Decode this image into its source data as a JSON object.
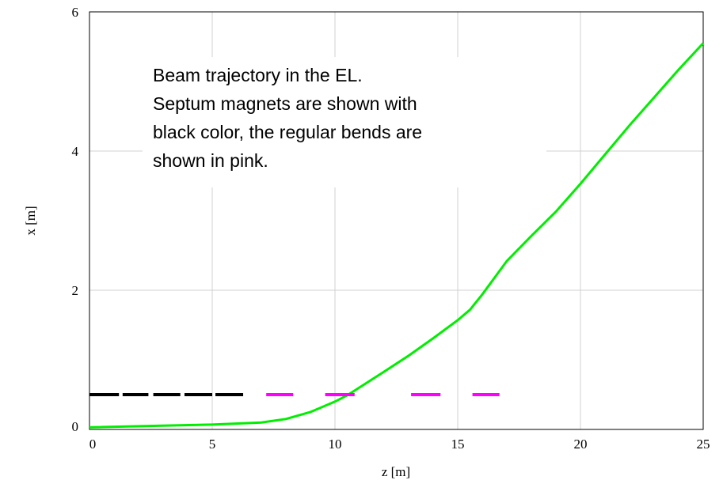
{
  "chart_data": {
    "type": "line",
    "xlabel": "z [m]",
    "ylabel": "x [m]",
    "annotation": [
      "Beam trajectory in the EL.",
      "Septum magnets are shown with",
      "black color, the regular bends are",
      "shown in pink."
    ],
    "xlim": [
      0,
      25
    ],
    "ylim": [
      0,
      6
    ],
    "xticks": [
      0,
      5,
      10,
      15,
      20,
      25
    ],
    "yticks": [
      0,
      2,
      4,
      6
    ],
    "grid": true,
    "series": [
      {
        "color": "#00ee00",
        "x": [
          0,
          5,
          7,
          8,
          9,
          10,
          10.5,
          12,
          13,
          14,
          15,
          15.5,
          16,
          17,
          18,
          19,
          20,
          21,
          22,
          23,
          24,
          25
        ],
        "values": [
          0.03,
          0.07,
          0.1,
          0.15,
          0.25,
          0.4,
          0.49,
          0.83,
          1.06,
          1.31,
          1.57,
          1.72,
          1.94,
          2.42,
          2.78,
          3.13,
          3.53,
          3.95,
          4.37,
          4.77,
          5.17,
          5.55
        ]
      },
      {
        "color": "#000000",
        "x": [
          0,
          1.2,
          1.3,
          1.35,
          2.4,
          2.5,
          2.6,
          3.7,
          3.8,
          3.87,
          5.0,
          5.1,
          5.13,
          6.26
        ],
        "values": [
          0.5,
          0.5,
          null,
          0.5,
          0.5,
          null,
          0.5,
          0.5,
          null,
          0.5,
          0.5,
          null,
          0.5,
          0.5
        ]
      },
      {
        "color": "#ff00ff",
        "x": [
          7.2,
          8.3,
          9,
          9.6,
          10.8,
          12,
          13.1,
          14.3,
          15,
          15.6,
          16.7
        ],
        "values": [
          0.5,
          0.5,
          null,
          0.5,
          0.5,
          null,
          0.5,
          0.5,
          null,
          0.5,
          0.5
        ]
      }
    ]
  }
}
